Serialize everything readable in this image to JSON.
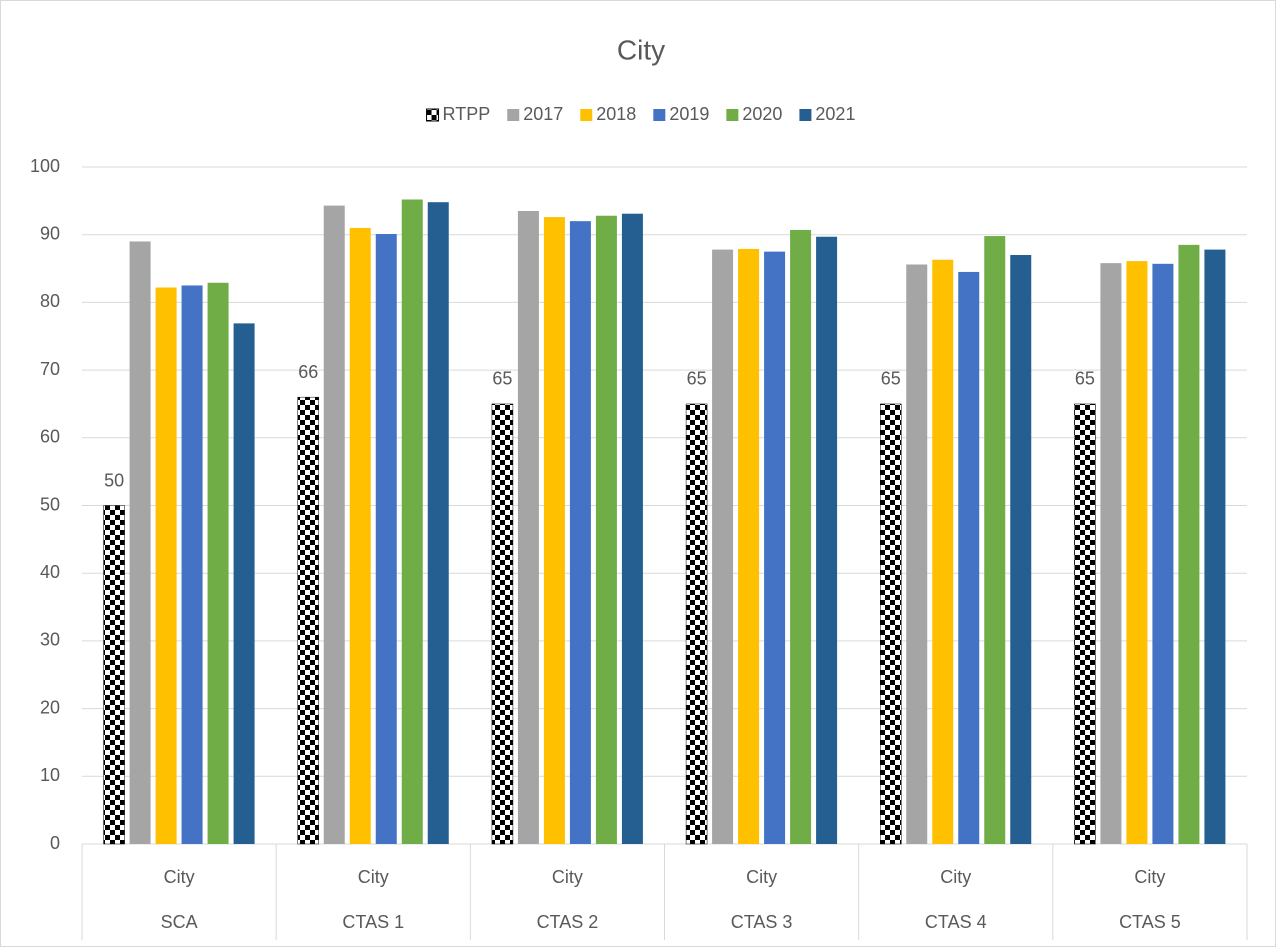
{
  "chart_data": {
    "type": "bar",
    "title": "City",
    "categories": [
      "SCA",
      "CTAS 1",
      "CTAS 2",
      "CTAS 3",
      "CTAS 4",
      "CTAS 5"
    ],
    "subcategories": [
      "City",
      "City",
      "City",
      "City",
      "City",
      "City"
    ],
    "ylim": [
      0,
      100
    ],
    "yticks": [
      0,
      10,
      20,
      30,
      40,
      50,
      60,
      70,
      80,
      90,
      100
    ],
    "grid": true,
    "legend": "top",
    "series": [
      {
        "name": "RTPP",
        "color": "#000000",
        "pattern": "checker",
        "show_labels": true,
        "values": [
          50,
          66,
          65,
          65,
          65,
          65
        ]
      },
      {
        "name": "2017",
        "color": "#a5a5a5",
        "values": [
          89,
          94.3,
          93.5,
          87.8,
          85.6,
          85.8
        ]
      },
      {
        "name": "2018",
        "color": "#ffc000",
        "values": [
          82.2,
          91,
          92.6,
          87.9,
          86.3,
          86.1
        ]
      },
      {
        "name": "2019",
        "color": "#4472c4",
        "values": [
          82.5,
          90.1,
          92,
          87.5,
          84.5,
          85.7
        ]
      },
      {
        "name": "2020",
        "color": "#70ad47",
        "values": [
          82.9,
          95.2,
          92.8,
          90.7,
          89.8,
          88.5
        ]
      },
      {
        "name": "2021",
        "color": "#255e91",
        "values": [
          76.9,
          94.8,
          93.1,
          89.7,
          87,
          87.8
        ]
      }
    ]
  }
}
